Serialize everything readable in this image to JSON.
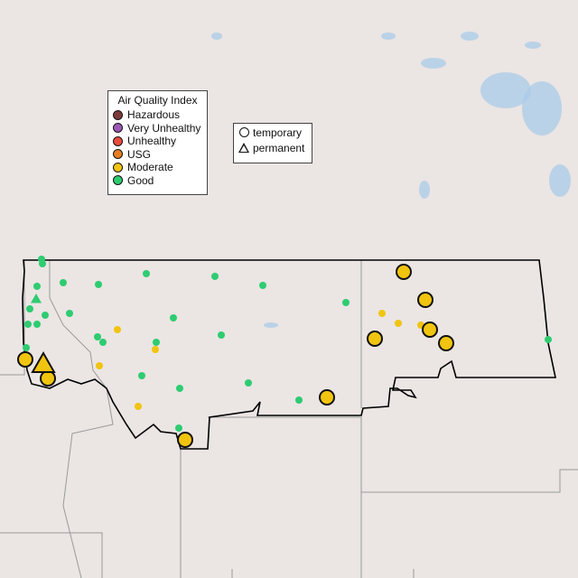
{
  "aqi_legend": {
    "title": "Air Quality Index",
    "items": [
      {
        "label": "Hazardous",
        "color": "#7e3a3a"
      },
      {
        "label": "Very Unhealthy",
        "color": "#9b59b6"
      },
      {
        "label": "Unhealthy",
        "color": "#e74c3c"
      },
      {
        "label": "USG",
        "color": "#e67e22"
      },
      {
        "label": "Moderate",
        "color": "#f1c40f"
      },
      {
        "label": "Good",
        "color": "#2ecc71"
      }
    ]
  },
  "type_legend": {
    "items": [
      {
        "label": "temporary",
        "shape": "circle"
      },
      {
        "label": "permanent",
        "shape": "triangle"
      }
    ]
  },
  "colors": {
    "land": "#ebe5e4",
    "water": "#a9cbe8",
    "highlight_border": "#000000",
    "state_border": "#9a9a9a"
  }
}
